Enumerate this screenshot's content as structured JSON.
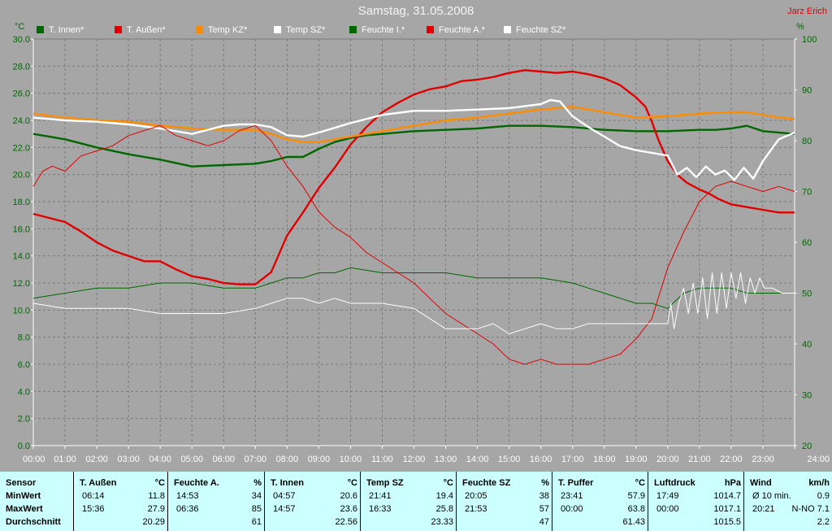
{
  "title": "Samstag, 31.05.2008",
  "author": "Jarz Erich",
  "units": {
    "left": "°C",
    "right": "%"
  },
  "legend": [
    {
      "label": "T. Innen*",
      "color": "#006600"
    },
    {
      "label": "T. Außen*",
      "color": "#e00000"
    },
    {
      "label": "Temp KZ*",
      "color": "#ff8c00"
    },
    {
      "label": "Temp SZ*",
      "color": "#ffffff"
    },
    {
      "label": "Feuchte I.*",
      "color": "#006600"
    },
    {
      "label": "Feuchte A.*",
      "color": "#e00000"
    },
    {
      "label": "Feuchte SZ*",
      "color": "#ffffff"
    }
  ],
  "chart_data": {
    "type": "line",
    "title": "Samstag, 31.05.2008",
    "grid": true,
    "x_range": [
      "00:00",
      "24:00"
    ],
    "x_ticks": [
      "00:00",
      "01:00",
      "02:00",
      "03:00",
      "04:00",
      "05:00",
      "06:00",
      "07:00",
      "08:00",
      "09:00",
      "10:00",
      "11:00",
      "12:00",
      "13:00",
      "14:00",
      "15:00",
      "16:00",
      "17:00",
      "18:00",
      "19:00",
      "20:00",
      "21:00",
      "22:00",
      "23:00",
      "24:00"
    ],
    "y_left": {
      "unit": "°C",
      "range": [
        0,
        30
      ],
      "ticks": [
        "0.0",
        "2.0",
        "4.0",
        "6.0",
        "8.0",
        "10.0",
        "12.0",
        "14.0",
        "16.0",
        "18.0",
        "20.0",
        "22.0",
        "24.0",
        "26.0",
        "28.0",
        "30.0"
      ]
    },
    "y_right": {
      "unit": "%",
      "range": [
        20,
        100
      ],
      "ticks": [
        "20",
        "30",
        "40",
        "50",
        "60",
        "70",
        "80",
        "90",
        "100"
      ]
    },
    "series": [
      {
        "name": "T. Innen*",
        "axis": "left",
        "color": "#006600",
        "width": 2.4,
        "x": [
          0,
          1,
          2,
          3,
          4,
          5,
          6,
          7,
          7.5,
          8,
          8.5,
          9,
          9.5,
          10,
          10.5,
          11,
          12,
          13,
          14,
          15,
          16,
          17,
          18,
          19,
          20,
          21,
          21.5,
          22,
          22.5,
          23,
          24
        ],
        "y": [
          23.0,
          22.6,
          22.0,
          21.5,
          21.1,
          20.6,
          20.7,
          20.8,
          21.0,
          21.3,
          21.3,
          21.9,
          22.4,
          22.7,
          22.9,
          23.0,
          23.2,
          23.3,
          23.4,
          23.6,
          23.6,
          23.5,
          23.3,
          23.2,
          23.2,
          23.3,
          23.3,
          23.4,
          23.6,
          23.2,
          23.0
        ]
      },
      {
        "name": "T. Außen*",
        "axis": "left",
        "color": "#e00000",
        "width": 2.4,
        "x": [
          0,
          0.5,
          1,
          1.5,
          2,
          2.5,
          3,
          3.5,
          4,
          4.5,
          5,
          5.5,
          6,
          6.5,
          7,
          7.5,
          8,
          8.5,
          9,
          9.5,
          10,
          10.5,
          11,
          11.5,
          12,
          12.5,
          13,
          13.5,
          14,
          14.5,
          15,
          15.5,
          16,
          16.5,
          17,
          17.5,
          18,
          18.5,
          19,
          19.3,
          19.5,
          19.7,
          20,
          20.3,
          20.6,
          21,
          21.3,
          21.6,
          22,
          22.5,
          23,
          23.5,
          24
        ],
        "y": [
          17.1,
          16.8,
          16.5,
          15.8,
          15.0,
          14.4,
          14.0,
          13.6,
          13.6,
          13.0,
          12.5,
          12.3,
          12.0,
          11.9,
          11.9,
          12.8,
          15.5,
          17.2,
          19.0,
          20.5,
          22.2,
          23.5,
          24.6,
          25.3,
          25.9,
          26.3,
          26.5,
          26.9,
          27.0,
          27.2,
          27.5,
          27.7,
          27.6,
          27.5,
          27.6,
          27.4,
          27.1,
          26.6,
          25.7,
          25.0,
          23.9,
          22.6,
          21.0,
          20.0,
          19.4,
          18.9,
          18.6,
          18.2,
          17.8,
          17.6,
          17.4,
          17.2,
          17.2
        ]
      },
      {
        "name": "Temp KZ*",
        "axis": "left",
        "color": "#ff8c00",
        "width": 2.4,
        "x": [
          0,
          1,
          2,
          3,
          4,
          5,
          6,
          7,
          7.5,
          8,
          8.5,
          9,
          10,
          11,
          12,
          13,
          14,
          15,
          16,
          16.5,
          17,
          18,
          19,
          20,
          21,
          22,
          22.5,
          23,
          23.5,
          24
        ],
        "y": [
          24.5,
          24.2,
          24.0,
          23.9,
          23.6,
          23.4,
          23.3,
          23.3,
          23.0,
          22.6,
          22.4,
          22.4,
          22.8,
          23.2,
          23.6,
          24.0,
          24.2,
          24.5,
          24.8,
          24.9,
          25.0,
          24.6,
          24.2,
          24.3,
          24.5,
          24.6,
          24.6,
          24.4,
          24.2,
          24.1
        ]
      },
      {
        "name": "Temp SZ*",
        "axis": "left",
        "color": "#ffffff",
        "width": 2.4,
        "x": [
          0,
          1,
          2,
          3,
          4,
          5,
          6,
          6.5,
          7,
          7.5,
          8,
          8.5,
          9,
          10,
          11,
          12,
          13,
          14,
          15,
          16,
          16.3,
          16.6,
          17,
          17.5,
          18,
          18.5,
          19,
          19.5,
          20,
          20.3,
          20.6,
          20.9,
          21.2,
          21.5,
          21.8,
          22.1,
          22.4,
          22.7,
          23,
          23.5,
          24
        ],
        "y": [
          24.2,
          24.0,
          23.9,
          23.7,
          23.4,
          23.0,
          23.6,
          23.7,
          23.7,
          23.5,
          22.9,
          22.8,
          23.1,
          23.8,
          24.4,
          24.7,
          24.7,
          24.8,
          24.9,
          25.2,
          25.5,
          25.4,
          24.3,
          23.5,
          22.8,
          22.1,
          21.8,
          21.6,
          21.4,
          20.0,
          20.5,
          19.8,
          20.6,
          20.0,
          20.3,
          19.6,
          20.5,
          19.7,
          21.0,
          22.6,
          23.1
        ]
      },
      {
        "name": "Feuchte I.*",
        "axis": "right",
        "color": "#006600",
        "width": 1,
        "x": [
          0,
          1,
          2,
          3,
          4,
          5,
          6,
          7,
          7.5,
          8,
          8.5,
          9,
          9.5,
          10,
          11,
          12,
          13,
          14,
          15,
          16,
          17,
          17.5,
          18,
          18.5,
          19,
          19.5,
          20,
          20.5,
          21,
          21.5,
          22,
          22.5,
          23,
          24
        ],
        "y": [
          49,
          50,
          51,
          51,
          52,
          52,
          51,
          51,
          52,
          53,
          53,
          54,
          54,
          55,
          54,
          54,
          54,
          53,
          53,
          53,
          52,
          51,
          50,
          49,
          48,
          48,
          47,
          50,
          51,
          51,
          51,
          50,
          50,
          50
        ]
      },
      {
        "name": "Feuchte A.*",
        "axis": "right",
        "color": "#e00000",
        "width": 1,
        "x": [
          0,
          0.3,
          0.6,
          1,
          1.5,
          2,
          2.5,
          3,
          3.5,
          4,
          4.5,
          5,
          5.5,
          6,
          6.5,
          7,
          7.5,
          8,
          8.5,
          9,
          9.5,
          10,
          10.5,
          11,
          11.5,
          12,
          12.5,
          13,
          13.5,
          14,
          14.5,
          15,
          15.5,
          16,
          16.5,
          17,
          17.5,
          18,
          18.5,
          19,
          19.5,
          20,
          20.5,
          21,
          21.5,
          22,
          22.5,
          23,
          23.5,
          24
        ],
        "y": [
          71,
          74,
          75,
          74,
          77,
          78,
          79,
          81,
          82,
          83,
          81,
          80,
          79,
          80,
          82,
          83,
          80,
          75,
          71,
          66,
          63,
          61,
          58,
          56,
          54,
          52,
          49,
          46,
          44,
          42,
          40,
          37,
          36,
          37,
          36,
          36,
          36,
          37,
          38,
          41,
          45,
          55,
          62,
          68,
          71,
          72,
          71,
          70,
          71,
          70
        ]
      },
      {
        "name": "Feuchte SZ*",
        "axis": "right",
        "color": "#ffffff",
        "width": 1,
        "x": [
          0,
          1,
          2,
          3,
          4,
          5,
          6,
          7,
          7.5,
          8,
          8.5,
          9,
          9.5,
          10,
          11,
          12,
          12.5,
          13,
          13.5,
          14,
          14.5,
          15,
          15.5,
          16,
          16.5,
          17,
          17.5,
          18,
          19,
          19.5,
          19.8,
          20,
          20.1,
          20.2,
          20.35,
          20.5,
          20.65,
          20.8,
          20.95,
          21.1,
          21.25,
          21.4,
          21.55,
          21.7,
          21.85,
          22,
          22.15,
          22.3,
          22.45,
          22.6,
          22.75,
          22.9,
          23.05,
          23.3,
          23.6,
          24
        ],
        "y": [
          48,
          47,
          47,
          47,
          46,
          46,
          46,
          47,
          48,
          49,
          49,
          48,
          49,
          48,
          48,
          47,
          45,
          43,
          43,
          43,
          44,
          42,
          43,
          44,
          43,
          43,
          44,
          44,
          44,
          44,
          44,
          44,
          48,
          43,
          48,
          51,
          46,
          52,
          46,
          53,
          45,
          54,
          46,
          54,
          47,
          54,
          49,
          54,
          48,
          53,
          50,
          53,
          51,
          51,
          50,
          50
        ]
      }
    ]
  },
  "stats": {
    "row_labels": [
      "Sensor",
      "MinWert",
      "MaxWert",
      "Durchschnitt"
    ],
    "columns": [
      {
        "name": "T. Außen",
        "unit": "°C",
        "min_time": "06:14",
        "min_val": "11.8",
        "max_time": "15:36",
        "max_val": "27.9",
        "avg": "20.29"
      },
      {
        "name": "Feuchte A.",
        "unit": "%",
        "min_time": "14:53",
        "min_val": "34",
        "max_time": "06:36",
        "max_val": "85",
        "avg": "61"
      },
      {
        "name": "T. Innen",
        "unit": "°C",
        "min_time": "04:57",
        "min_val": "20.6",
        "max_time": "14:57",
        "max_val": "23.6",
        "avg": "22.56"
      },
      {
        "name": "Temp SZ",
        "unit": "°C",
        "min_time": "21:41",
        "min_val": "19.4",
        "max_time": "16:33",
        "max_val": "25.8",
        "avg": "23.33"
      },
      {
        "name": "Feuchte SZ",
        "unit": "%",
        "min_time": "20:05",
        "min_val": "38",
        "max_time": "21:53",
        "max_val": "57",
        "avg": "47"
      },
      {
        "name": "T. Puffer",
        "unit": "°C",
        "min_time": "23:41",
        "min_val": "57.9",
        "max_time": "00:00",
        "max_val": "63.8",
        "avg": "61.43"
      },
      {
        "name": "Luftdruck",
        "unit": "hPa",
        "min_time": "17:49",
        "min_val": "1014.7",
        "max_time": "00:00",
        "max_val": "1017.1",
        "avg": "1015.5"
      },
      {
        "name": "Wind",
        "unit": "km/h",
        "min_time": "Ø 10 min.",
        "min_val": "0.9",
        "max_time": "20:21",
        "max_val": "N-NO 7.1",
        "avg": "2.2"
      }
    ]
  }
}
